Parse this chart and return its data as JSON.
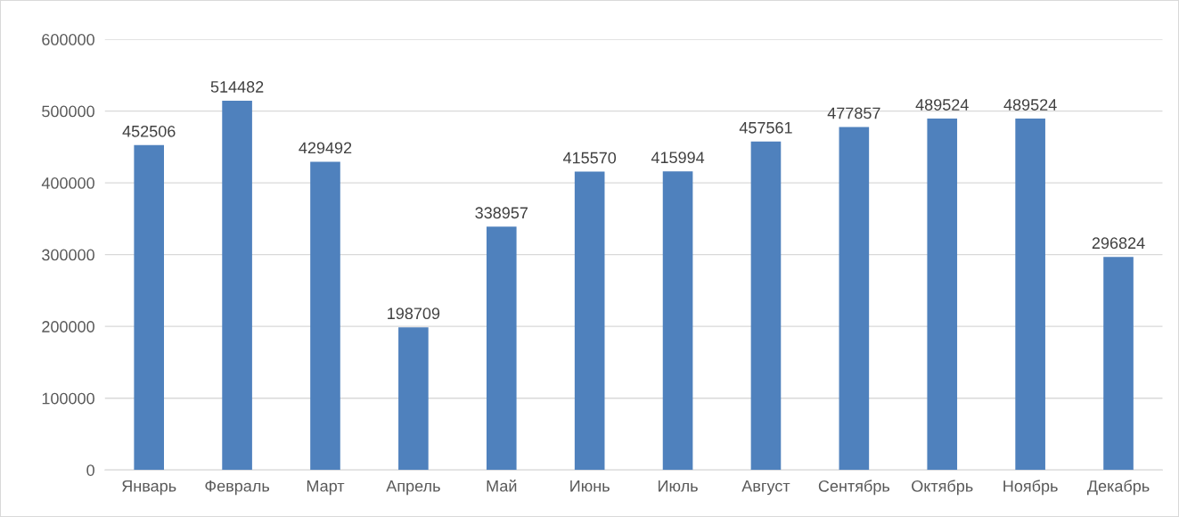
{
  "chart_data": {
    "type": "bar",
    "categories": [
      "Январь",
      "Февраль",
      "Март",
      "Апрель",
      "Май",
      "Июнь",
      "Июль",
      "Август",
      "Сентябрь",
      "Октябрь",
      "Ноябрь",
      "Декабрь"
    ],
    "values": [
      452506,
      514482,
      429492,
      198709,
      338957,
      415570,
      415994,
      457561,
      477857,
      489524,
      489524,
      296824
    ],
    "color": "#4f81bd",
    "ylim": [
      0,
      600000
    ],
    "yticks": [
      0,
      100000,
      200000,
      300000,
      400000,
      500000,
      600000
    ],
    "grid": "y",
    "data_labels": true,
    "legend": false
  }
}
